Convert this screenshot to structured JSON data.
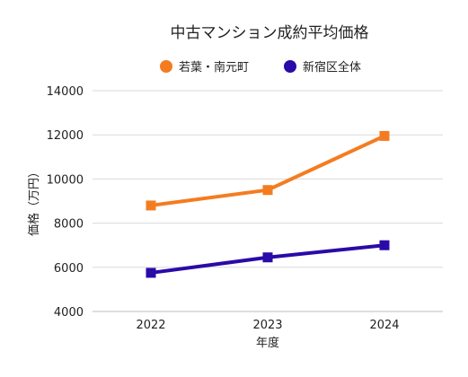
{
  "chart_data": {
    "type": "line",
    "title": "中古マンション成約平均価格",
    "xlabel": "年度",
    "ylabel": "価格（万円）",
    "categories": [
      "2022",
      "2023",
      "2024"
    ],
    "ylim": [
      4000,
      14000
    ],
    "yticks": [
      4000,
      6000,
      8000,
      10000,
      12000,
      14000
    ],
    "grid": true,
    "legend_position": "top",
    "series": [
      {
        "name": "若葉・南元町",
        "values": [
          8800,
          9500,
          11950
        ],
        "color": "#f47c20",
        "marker": "square"
      },
      {
        "name": "新宿区全体",
        "values": [
          5750,
          6450,
          7000
        ],
        "color": "#2a0aa8",
        "marker": "square"
      }
    ]
  }
}
